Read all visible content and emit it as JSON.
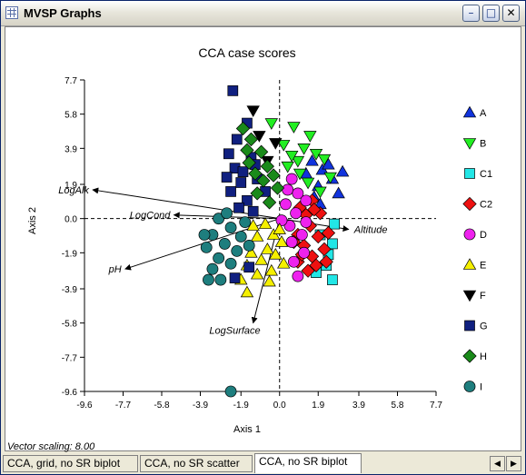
{
  "window": {
    "title": "MVSP Graphs",
    "minimize": "–",
    "maximize": "□",
    "close": "✕"
  },
  "vector_note": "Vector scaling: 8.00",
  "tabs": [
    {
      "label": "CCA, grid, no SR biplot",
      "active": false
    },
    {
      "label": "CCA, no SR scatter",
      "active": false
    },
    {
      "label": "CCA, no SR biplot",
      "active": true
    }
  ],
  "scroll": {
    "left": "◀",
    "right": "▶"
  },
  "chart_data": {
    "type": "scatter",
    "title": "CCA case scores",
    "xlabel": "Axis 1",
    "ylabel": "Axis 2",
    "xlim": [
      -9.6,
      7.7
    ],
    "ylim": [
      -9.6,
      7.7
    ],
    "xticks": [
      "-9.6",
      "-7.7",
      "-5.8",
      "-3.9",
      "-1.9",
      "0.0",
      "1.9",
      "3.9",
      "5.8",
      "7.7"
    ],
    "yticks": [
      "7.7",
      "5.8",
      "3.9",
      "1.9",
      "0.0",
      "-1.9",
      "-3.9",
      "-5.8",
      "-7.7",
      "-9.6"
    ],
    "xtick_values": [
      -9.6,
      -7.7,
      -5.8,
      -3.9,
      -1.9,
      0.0,
      1.9,
      3.9,
      5.8,
      7.7
    ],
    "ytick_values": [
      7.7,
      5.8,
      3.9,
      1.9,
      0.0,
      -1.9,
      -3.9,
      -5.8,
      -7.7,
      -9.6
    ],
    "legend_position": "right",
    "series": [
      {
        "name": "A",
        "marker": "triangle-up",
        "color": "#1133dd",
        "points": [
          [
            1.6,
            3.2
          ],
          [
            2.1,
            2.7
          ],
          [
            2.6,
            2.2
          ],
          [
            1.9,
            1.8
          ],
          [
            1.3,
            2.5
          ],
          [
            2.9,
            1.4
          ],
          [
            2.4,
            3.0
          ],
          [
            1.7,
            1.2
          ],
          [
            3.1,
            2.6
          ],
          [
            2.0,
            0.8
          ]
        ]
      },
      {
        "name": "B",
        "marker": "triangle-down",
        "color": "#22ee22",
        "points": [
          [
            -0.4,
            5.3
          ],
          [
            0.7,
            5.1
          ],
          [
            1.5,
            4.6
          ],
          [
            0.2,
            4.1
          ],
          [
            1.2,
            3.9
          ],
          [
            0.9,
            3.2
          ],
          [
            1.8,
            3.6
          ],
          [
            0.4,
            2.9
          ],
          [
            2.2,
            3.3
          ],
          [
            1.0,
            2.5
          ],
          [
            1.4,
            2.0
          ],
          [
            2.5,
            2.3
          ],
          [
            0.6,
            3.5
          ],
          [
            2.0,
            1.5
          ]
        ]
      },
      {
        "name": "C1",
        "marker": "square",
        "color": "#22e6e6",
        "points": [
          [
            2.6,
            -1.4
          ],
          [
            2.3,
            -2.6
          ],
          [
            2.6,
            -3.4
          ],
          [
            2.0,
            -0.9
          ],
          [
            2.7,
            -0.3
          ],
          [
            2.4,
            -2.0
          ],
          [
            1.8,
            -3.0
          ]
        ]
      },
      {
        "name": "C2",
        "marker": "diamond",
        "color": "#ee1111",
        "points": [
          [
            1.0,
            0.6
          ],
          [
            1.6,
            1.0
          ],
          [
            1.3,
            0.2
          ],
          [
            2.0,
            0.3
          ],
          [
            1.5,
            -0.4
          ],
          [
            0.9,
            -0.9
          ],
          [
            1.9,
            -1.0
          ],
          [
            1.2,
            -1.5
          ],
          [
            2.2,
            -1.7
          ],
          [
            1.6,
            -2.1
          ],
          [
            0.9,
            -2.4
          ],
          [
            1.8,
            -2.6
          ],
          [
            2.3,
            -2.4
          ],
          [
            1.4,
            -2.9
          ],
          [
            0.7,
            -1.3
          ],
          [
            2.4,
            -0.8
          ],
          [
            1.1,
            -2.0
          ],
          [
            1.7,
            0.5
          ]
        ]
      },
      {
        "name": "D",
        "marker": "circle",
        "color": "#ee22ee",
        "points": [
          [
            0.4,
            1.6
          ],
          [
            0.9,
            1.4
          ],
          [
            0.3,
            0.8
          ],
          [
            0.8,
            0.3
          ],
          [
            0.5,
            -0.4
          ],
          [
            1.1,
            -0.9
          ],
          [
            0.6,
            -1.3
          ],
          [
            1.2,
            -1.9
          ],
          [
            0.7,
            -2.4
          ],
          [
            0.9,
            -3.2
          ],
          [
            1.3,
            -0.2
          ],
          [
            0.1,
            -0.1
          ],
          [
            1.3,
            1.0
          ],
          [
            0.6,
            2.2
          ]
        ]
      },
      {
        "name": "E",
        "marker": "triangle-up",
        "color": "#f5f000",
        "points": [
          [
            -0.7,
            -0.3
          ],
          [
            -0.3,
            -0.9
          ],
          [
            -1.1,
            -1.0
          ],
          [
            0.1,
            -1.3
          ],
          [
            -0.6,
            -1.7
          ],
          [
            -1.4,
            -1.9
          ],
          [
            -0.2,
            -2.0
          ],
          [
            -0.9,
            -2.3
          ],
          [
            -1.6,
            -2.6
          ],
          [
            0.2,
            -2.5
          ],
          [
            -0.4,
            -2.9
          ],
          [
            -1.1,
            -3.1
          ],
          [
            -1.9,
            -3.4
          ],
          [
            -1.6,
            -4.1
          ],
          [
            -0.5,
            -3.5
          ],
          [
            0.0,
            -0.6
          ],
          [
            -1.3,
            -0.4
          ]
        ]
      },
      {
        "name": "F",
        "marker": "triangle-down",
        "color": "#000000",
        "points": [
          [
            -1.3,
            6.0
          ],
          [
            -0.2,
            4.2
          ],
          [
            -1.0,
            4.6
          ],
          [
            -0.6,
            3.2
          ]
        ]
      },
      {
        "name": "G",
        "marker": "square",
        "color": "#102080",
        "points": [
          [
            -2.3,
            7.1
          ],
          [
            -1.6,
            5.3
          ],
          [
            -2.1,
            4.4
          ],
          [
            -2.5,
            3.6
          ],
          [
            -1.4,
            3.4
          ],
          [
            -2.2,
            2.8
          ],
          [
            -1.9,
            2.0
          ],
          [
            -1.1,
            2.2
          ],
          [
            -2.4,
            1.5
          ],
          [
            -1.6,
            1.0
          ],
          [
            -0.7,
            1.5
          ],
          [
            -2.0,
            0.6
          ],
          [
            -1.3,
            0.4
          ],
          [
            -2.6,
            2.3
          ],
          [
            -1.5,
            -2.7
          ],
          [
            -2.2,
            -3.3
          ],
          [
            -1.8,
            2.6
          ],
          [
            -1.2,
            3.0
          ]
        ]
      },
      {
        "name": "H",
        "marker": "diamond",
        "color": "#1a8a1a",
        "points": [
          [
            -1.8,
            5.0
          ],
          [
            -1.4,
            4.4
          ],
          [
            -0.9,
            3.7
          ],
          [
            -1.6,
            3.8
          ],
          [
            -0.6,
            2.9
          ],
          [
            -1.2,
            2.5
          ],
          [
            -0.3,
            2.4
          ],
          [
            -0.8,
            2.1
          ],
          [
            -0.1,
            1.7
          ],
          [
            -1.1,
            1.4
          ],
          [
            -0.5,
            0.9
          ],
          [
            -1.5,
            3.1
          ]
        ]
      },
      {
        "name": "I",
        "marker": "circle",
        "color": "#1e7e7e",
        "points": [
          [
            -3.0,
            0.0
          ],
          [
            -2.4,
            -0.5
          ],
          [
            -3.3,
            -0.9
          ],
          [
            -1.9,
            -1.0
          ],
          [
            -2.7,
            -1.4
          ],
          [
            -3.6,
            -1.6
          ],
          [
            -2.1,
            -1.8
          ],
          [
            -3.0,
            -2.2
          ],
          [
            -2.4,
            -2.5
          ],
          [
            -3.3,
            -2.8
          ],
          [
            -1.7,
            -0.2
          ],
          [
            -3.7,
            -0.9
          ],
          [
            -2.6,
            0.3
          ],
          [
            -1.5,
            -1.5
          ],
          [
            -2.9,
            -3.4
          ],
          [
            -3.5,
            -3.4
          ],
          [
            -2.4,
            -9.6
          ]
        ]
      }
    ],
    "vectors": [
      {
        "label": "LogAlk",
        "x": -9.2,
        "y": 1.6
      },
      {
        "label": "LogCond",
        "x": -5.2,
        "y": 0.2
      },
      {
        "label": "Altitude",
        "x": 3.4,
        "y": -0.6
      },
      {
        "label": "pH",
        "x": -7.6,
        "y": -2.8
      },
      {
        "label": "LogSurface",
        "x": -1.3,
        "y": -5.8
      }
    ]
  }
}
